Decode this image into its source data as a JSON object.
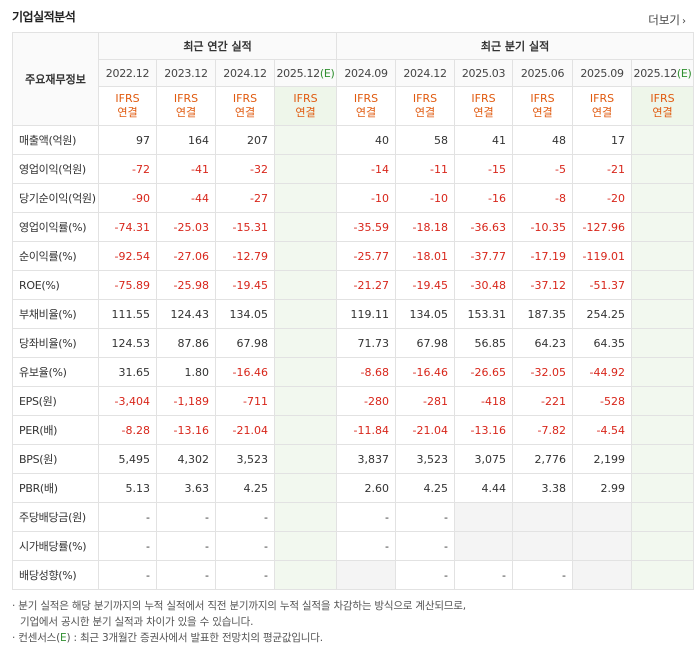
{
  "title": "기업실적분석",
  "more": {
    "label": "더보기",
    "icon": "chevron-right-icon"
  },
  "header": {
    "row_label": "주요재무정보",
    "annual_group": "최근 연간 실적",
    "quarter_group": "최근 분기 실적",
    "annual_periods": [
      "2022.12",
      "2023.12",
      "2024.12",
      "2025.12(E)"
    ],
    "quarter_periods": [
      "2024.09",
      "2024.12",
      "2025.03",
      "2025.06",
      "2025.09",
      "2025.12(E)"
    ],
    "ifrs_label": "IFRS",
    "basis_label": "연결"
  },
  "rows": [
    {
      "label": "매출액(억원)",
      "annual": [
        "97",
        "164",
        "207",
        ""
      ],
      "quarter": [
        "40",
        "58",
        "41",
        "48",
        "17",
        ""
      ]
    },
    {
      "label": "영업이익(억원)",
      "annual": [
        "-72",
        "-41",
        "-32",
        ""
      ],
      "quarter": [
        "-14",
        "-11",
        "-15",
        "-5",
        "-21",
        ""
      ]
    },
    {
      "label": "당기순이익(억원)",
      "annual": [
        "-90",
        "-44",
        "-27",
        ""
      ],
      "quarter": [
        "-10",
        "-10",
        "-16",
        "-8",
        "-20",
        ""
      ]
    },
    {
      "label": "영업이익률(%)",
      "annual": [
        "-74.31",
        "-25.03",
        "-15.31",
        ""
      ],
      "quarter": [
        "-35.59",
        "-18.18",
        "-36.63",
        "-10.35",
        "-127.96",
        ""
      ]
    },
    {
      "label": "순이익률(%)",
      "annual": [
        "-92.54",
        "-27.06",
        "-12.79",
        ""
      ],
      "quarter": [
        "-25.77",
        "-18.01",
        "-37.77",
        "-17.19",
        "-119.01",
        ""
      ]
    },
    {
      "label": "ROE(%)",
      "annual": [
        "-75.89",
        "-25.98",
        "-19.45",
        ""
      ],
      "quarter": [
        "-21.27",
        "-19.45",
        "-30.48",
        "-37.12",
        "-51.37",
        ""
      ]
    },
    {
      "label": "부채비율(%)",
      "annual": [
        "111.55",
        "124.43",
        "134.05",
        ""
      ],
      "quarter": [
        "119.11",
        "134.05",
        "153.31",
        "187.35",
        "254.25",
        ""
      ]
    },
    {
      "label": "당좌비율(%)",
      "annual": [
        "124.53",
        "87.86",
        "67.98",
        ""
      ],
      "quarter": [
        "71.73",
        "67.98",
        "56.85",
        "64.23",
        "64.35",
        ""
      ]
    },
    {
      "label": "유보율(%)",
      "annual": [
        "31.65",
        "1.80",
        "-16.46",
        ""
      ],
      "quarter": [
        "-8.68",
        "-16.46",
        "-26.65",
        "-32.05",
        "-44.92",
        ""
      ]
    },
    {
      "label": "EPS(원)",
      "annual": [
        "-3,404",
        "-1,189",
        "-711",
        ""
      ],
      "quarter": [
        "-280",
        "-281",
        "-418",
        "-221",
        "-528",
        ""
      ]
    },
    {
      "label": "PER(배)",
      "annual": [
        "-8.28",
        "-13.16",
        "-21.04",
        ""
      ],
      "quarter": [
        "-11.84",
        "-21.04",
        "-13.16",
        "-7.82",
        "-4.54",
        ""
      ]
    },
    {
      "label": "BPS(원)",
      "annual": [
        "5,495",
        "4,302",
        "3,523",
        ""
      ],
      "quarter": [
        "3,837",
        "3,523",
        "3,075",
        "2,776",
        "2,199",
        ""
      ]
    },
    {
      "label": "PBR(배)",
      "annual": [
        "5.13",
        "3.63",
        "4.25",
        ""
      ],
      "quarter": [
        "2.60",
        "4.25",
        "4.44",
        "3.38",
        "2.99",
        ""
      ]
    },
    {
      "label": "주당배당금(원)",
      "annual": [
        "-",
        "-",
        "-",
        ""
      ],
      "quarter": [
        "-",
        "-",
        "",
        "",
        "",
        ""
      ]
    },
    {
      "label": "시가배당률(%)",
      "annual": [
        "-",
        "-",
        "-",
        ""
      ],
      "quarter": [
        "-",
        "-",
        "",
        "",
        "",
        ""
      ]
    },
    {
      "label": "배당성향(%)",
      "annual": [
        "-",
        "-",
        "-",
        ""
      ],
      "quarter": [
        "",
        "-",
        "-",
        "-",
        "",
        ""
      ]
    }
  ],
  "notes": [
    "· 분기 실적은 해당 분기까지의 누적 실적에서 직전 분기까지의 누적 실적을 차감하는 방식으로 계산되므로,",
    "  기업에서 공시한 분기 실적과 차이가 있을 수 있습니다.",
    "· 컨센서스(E) : 최근 3개월간 증권사에서 발표한 전망치의 평균값입니다."
  ],
  "colors": {
    "negative": "#d8261b",
    "ifrs": "#e05a0f",
    "estimate_bg": "#f2f8ef",
    "estimate_mark": "#2f8f2f"
  }
}
